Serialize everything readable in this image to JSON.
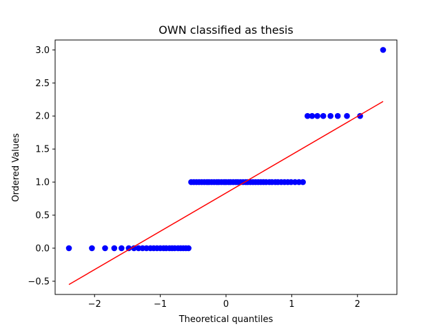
{
  "chart_data": {
    "type": "scatter",
    "title": "OWN classified as thesis",
    "xlabel": "Theoretical quantiles",
    "ylabel": "Ordered Values",
    "xlim": [
      -2.6,
      2.6
    ],
    "ylim": [
      -0.7,
      3.15
    ],
    "xticks": [
      -2,
      -1,
      0,
      1,
      2
    ],
    "xtick_labels": [
      "−2",
      "−1",
      "0",
      "1",
      "2"
    ],
    "yticks": [
      -0.5,
      0.0,
      0.5,
      1.0,
      1.5,
      2.0,
      2.5,
      3.0
    ],
    "ytick_labels": [
      "−0.5",
      "0.0",
      "0.5",
      "1.0",
      "1.5",
      "2.0",
      "2.5",
      "3.0"
    ],
    "grid": false,
    "colors": {
      "points": "#0000ff",
      "fit_line": "#ff0000"
    },
    "series": [
      {
        "kind": "points",
        "x": [
          -2.39,
          -2.04,
          -1.84,
          -1.7,
          -1.59,
          -1.48,
          -1.4,
          -1.33,
          -1.27,
          -1.21,
          -1.15,
          -1.1,
          -1.05,
          -1.0,
          -0.95,
          -0.91,
          -0.86,
          -0.82,
          -0.78,
          -0.73,
          -0.69,
          -0.65,
          -0.61,
          -0.57,
          -0.53,
          -0.49,
          -0.45,
          -0.41,
          -0.37,
          -0.33,
          -0.29,
          -0.26,
          -0.22,
          -0.18,
          -0.14,
          -0.11,
          -0.07,
          -0.03,
          0.0,
          0.04,
          0.07,
          0.11,
          0.15,
          0.18,
          0.22,
          0.26,
          0.3,
          0.33,
          0.37,
          0.41,
          0.45,
          0.49,
          0.53,
          0.57,
          0.61,
          0.66,
          0.7,
          0.75,
          0.79,
          0.84,
          0.89,
          0.94,
          0.99,
          1.05,
          1.11,
          1.17,
          1.24,
          1.31,
          1.39,
          1.48,
          1.59,
          1.7,
          1.84,
          2.04,
          2.39
        ],
        "y": [
          0,
          0,
          0,
          0,
          0,
          0,
          0,
          0,
          0,
          0,
          0,
          0,
          0,
          0,
          0,
          0,
          0,
          0,
          0,
          0,
          0,
          0,
          0,
          0,
          1,
          1,
          1,
          1,
          1,
          1,
          1,
          1,
          1,
          1,
          1,
          1,
          1,
          1,
          1,
          1,
          1,
          1,
          1,
          1,
          1,
          1,
          1,
          1,
          1,
          1,
          1,
          1,
          1,
          1,
          1,
          1,
          1,
          1,
          1,
          1,
          1,
          1,
          1,
          1,
          1,
          1,
          2,
          2,
          2,
          2,
          2,
          2,
          2,
          2,
          3
        ]
      },
      {
        "kind": "fit_line",
        "x": [
          -2.39,
          2.39
        ],
        "y": [
          -0.55,
          2.22
        ]
      }
    ]
  }
}
